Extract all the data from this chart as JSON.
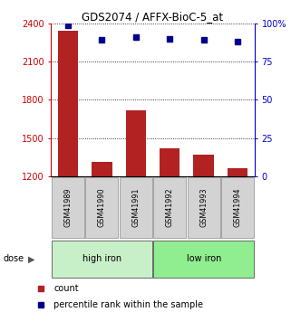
{
  "title": "GDS2074 / AFFX-BioC-5_at",
  "samples": [
    "GSM41989",
    "GSM41990",
    "GSM41991",
    "GSM41992",
    "GSM41993",
    "GSM41994"
  ],
  "counts": [
    2340,
    1310,
    1720,
    1420,
    1370,
    1260
  ],
  "percentiles": [
    99,
    89,
    91,
    90,
    89,
    88
  ],
  "ylim_left": [
    1200,
    2400
  ],
  "ylim_right": [
    0,
    100
  ],
  "yticks_left": [
    1200,
    1500,
    1800,
    2100,
    2400
  ],
  "yticks_right": [
    0,
    25,
    50,
    75,
    100
  ],
  "ytick_labels_right": [
    "0",
    "25",
    "50",
    "75",
    "100%"
  ],
  "bar_color": "#B22222",
  "dot_color": "#00008B",
  "groups": [
    {
      "label": "high iron",
      "indices": [
        0,
        1,
        2
      ],
      "bg_color": "#c8f0c8"
    },
    {
      "label": "low iron",
      "indices": [
        3,
        4,
        5
      ],
      "bg_color": "#90ee90"
    }
  ],
  "dose_label": "dose",
  "legend_count_label": "count",
  "legend_pct_label": "percentile rank within the sample",
  "left_axis_color": "#CC0000",
  "right_axis_color": "#0000CC",
  "sample_box_color": "#D3D3D3",
  "bar_width": 0.6
}
